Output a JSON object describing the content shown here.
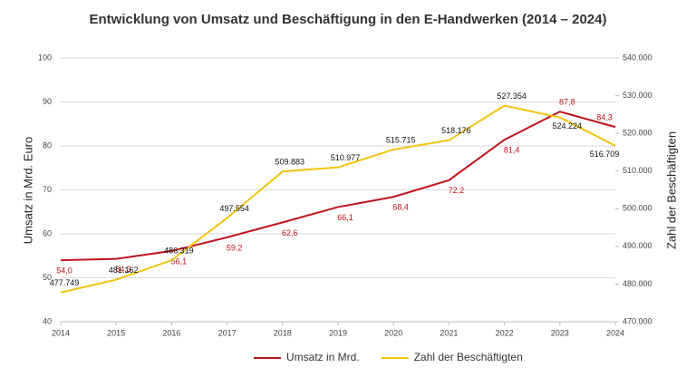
{
  "chart_data": {
    "type": "line",
    "title": "Entwicklung von Umsatz und Beschäftigung in den E-Handwerken (2014 – 2024)",
    "categories": [
      "2014",
      "2015",
      "2016",
      "2017",
      "2018",
      "2019",
      "2020",
      "2021",
      "2022",
      "2023",
      "2024"
    ],
    "ylabel": "Umsatz in Mrd. Euro",
    "y2label": "Zahl der Beschäftigten",
    "ylim": [
      40,
      100
    ],
    "yticks": [
      40,
      50,
      60,
      70,
      80,
      90,
      100
    ],
    "y2lim": [
      470000,
      540000
    ],
    "y2ticks": [
      {
        "value": 470000,
        "label": "470.000"
      },
      {
        "value": 480000,
        "label": "480.000"
      },
      {
        "value": 490000,
        "label": "490.000"
      },
      {
        "value": 500000,
        "label": "500.000"
      },
      {
        "value": 510000,
        "label": "510.000"
      },
      {
        "value": 520000,
        "label": "520.000"
      },
      {
        "value": 530000,
        "label": "530.000"
      },
      {
        "value": 540000,
        "label": "540.000"
      }
    ],
    "grid": true,
    "legend": "bottom",
    "series": [
      {
        "name": "Umsatz in Mrd.",
        "color": "#c0141c",
        "values": [
          54.0,
          54.3,
          56.1,
          59.2,
          62.6,
          66.1,
          68.4,
          72.2,
          81.4,
          87.8,
          84.3
        ],
        "value_labels": [
          "54,0",
          "54,3",
          "56,1",
          "59,2",
          "62,6",
          "66,1",
          "68,4",
          "72,2",
          "81,4",
          "87,8",
          "84,3"
        ]
      },
      {
        "name": "Zahl der Beschäftigten",
        "color": "#f2c40f",
        "axis": "y2",
        "values": [
          477749,
          481162,
          486319,
          497554,
          509883,
          510977,
          515715,
          518176,
          527354,
          524224,
          516709
        ],
        "value_labels": [
          "477.749",
          "481.162",
          "486.319",
          "497.554",
          "509.883",
          "510.977",
          "515.715",
          "518.176",
          "527.354",
          "524.224",
          "516.709"
        ]
      }
    ]
  }
}
